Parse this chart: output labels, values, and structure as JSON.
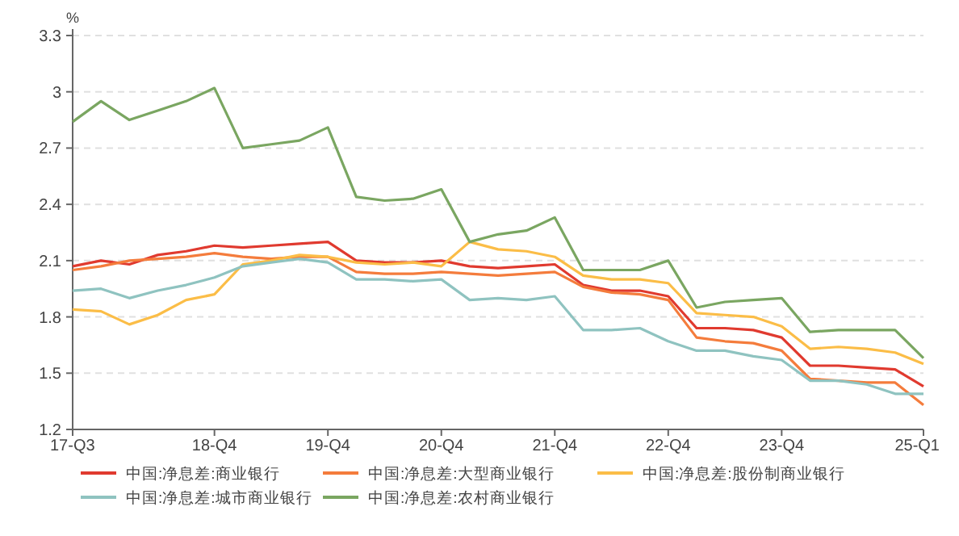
{
  "chart_data": {
    "type": "line",
    "ylabel": "%",
    "categories": [
      "17-Q3",
      null,
      null,
      null,
      null,
      "18-Q4",
      null,
      null,
      null,
      "19-Q4",
      null,
      null,
      null,
      "20-Q4",
      null,
      null,
      null,
      "21-Q4",
      null,
      null,
      null,
      "22-Q4",
      null,
      null,
      null,
      "23-Q4",
      null,
      null,
      null,
      null,
      "25-Q1"
    ],
    "series": [
      {
        "name": "中国:净息差:商业银行",
        "color": "#e03a2f",
        "values": [
          2.07,
          2.1,
          2.08,
          2.13,
          2.15,
          2.18,
          2.17,
          2.18,
          2.19,
          2.2,
          2.1,
          2.09,
          2.09,
          2.1,
          2.07,
          2.06,
          2.07,
          2.08,
          1.97,
          1.94,
          1.94,
          1.91,
          1.74,
          1.74,
          1.73,
          1.69,
          1.54,
          1.54,
          1.53,
          1.52,
          1.43
        ]
      },
      {
        "name": "中国:净息差:大型商业银行",
        "color": "#f47c3c",
        "values": [
          2.05,
          2.07,
          2.1,
          2.11,
          2.12,
          2.14,
          2.12,
          2.11,
          2.12,
          2.12,
          2.04,
          2.03,
          2.03,
          2.04,
          2.03,
          2.02,
          2.03,
          2.04,
          1.96,
          1.93,
          1.92,
          1.89,
          1.69,
          1.67,
          1.66,
          1.62,
          1.47,
          1.46,
          1.45,
          1.45,
          1.33
        ]
      },
      {
        "name": "中国:净息差:股份制商业银行",
        "color": "#fbbd47",
        "values": [
          1.84,
          1.83,
          1.76,
          1.81,
          1.89,
          1.92,
          2.08,
          2.1,
          2.13,
          2.12,
          2.09,
          2.08,
          2.09,
          2.07,
          2.2,
          2.16,
          2.15,
          2.12,
          2.02,
          2.0,
          2.0,
          1.98,
          1.82,
          1.81,
          1.8,
          1.75,
          1.63,
          1.64,
          1.63,
          1.61,
          1.55
        ]
      },
      {
        "name": "中国:净息差:城市商业银行",
        "color": "#8fc3c0",
        "values": [
          1.94,
          1.95,
          1.9,
          1.94,
          1.97,
          2.01,
          2.07,
          2.09,
          2.11,
          2.09,
          2.0,
          2.0,
          1.99,
          2.0,
          1.89,
          1.9,
          1.89,
          1.91,
          1.73,
          1.73,
          1.74,
          1.67,
          1.62,
          1.62,
          1.59,
          1.57,
          1.46,
          1.46,
          1.44,
          1.39,
          1.39
        ]
      },
      {
        "name": "中国:净息差:农村商业银行",
        "color": "#7aa661",
        "values": [
          2.84,
          2.95,
          2.85,
          2.9,
          2.95,
          3.02,
          2.7,
          2.72,
          2.74,
          2.81,
          2.44,
          2.42,
          2.43,
          2.48,
          2.2,
          2.24,
          2.26,
          2.33,
          2.05,
          2.05,
          2.05,
          2.1,
          1.85,
          1.88,
          1.89,
          1.9,
          1.72,
          1.73,
          1.73,
          1.73,
          1.58
        ]
      }
    ],
    "ylim": [
      1.2,
      3.3
    ],
    "yticks": [
      1.2,
      1.5,
      1.8,
      2.1,
      2.4,
      2.7,
      3,
      3.3
    ],
    "grid": "y",
    "legend": "bottom"
  }
}
